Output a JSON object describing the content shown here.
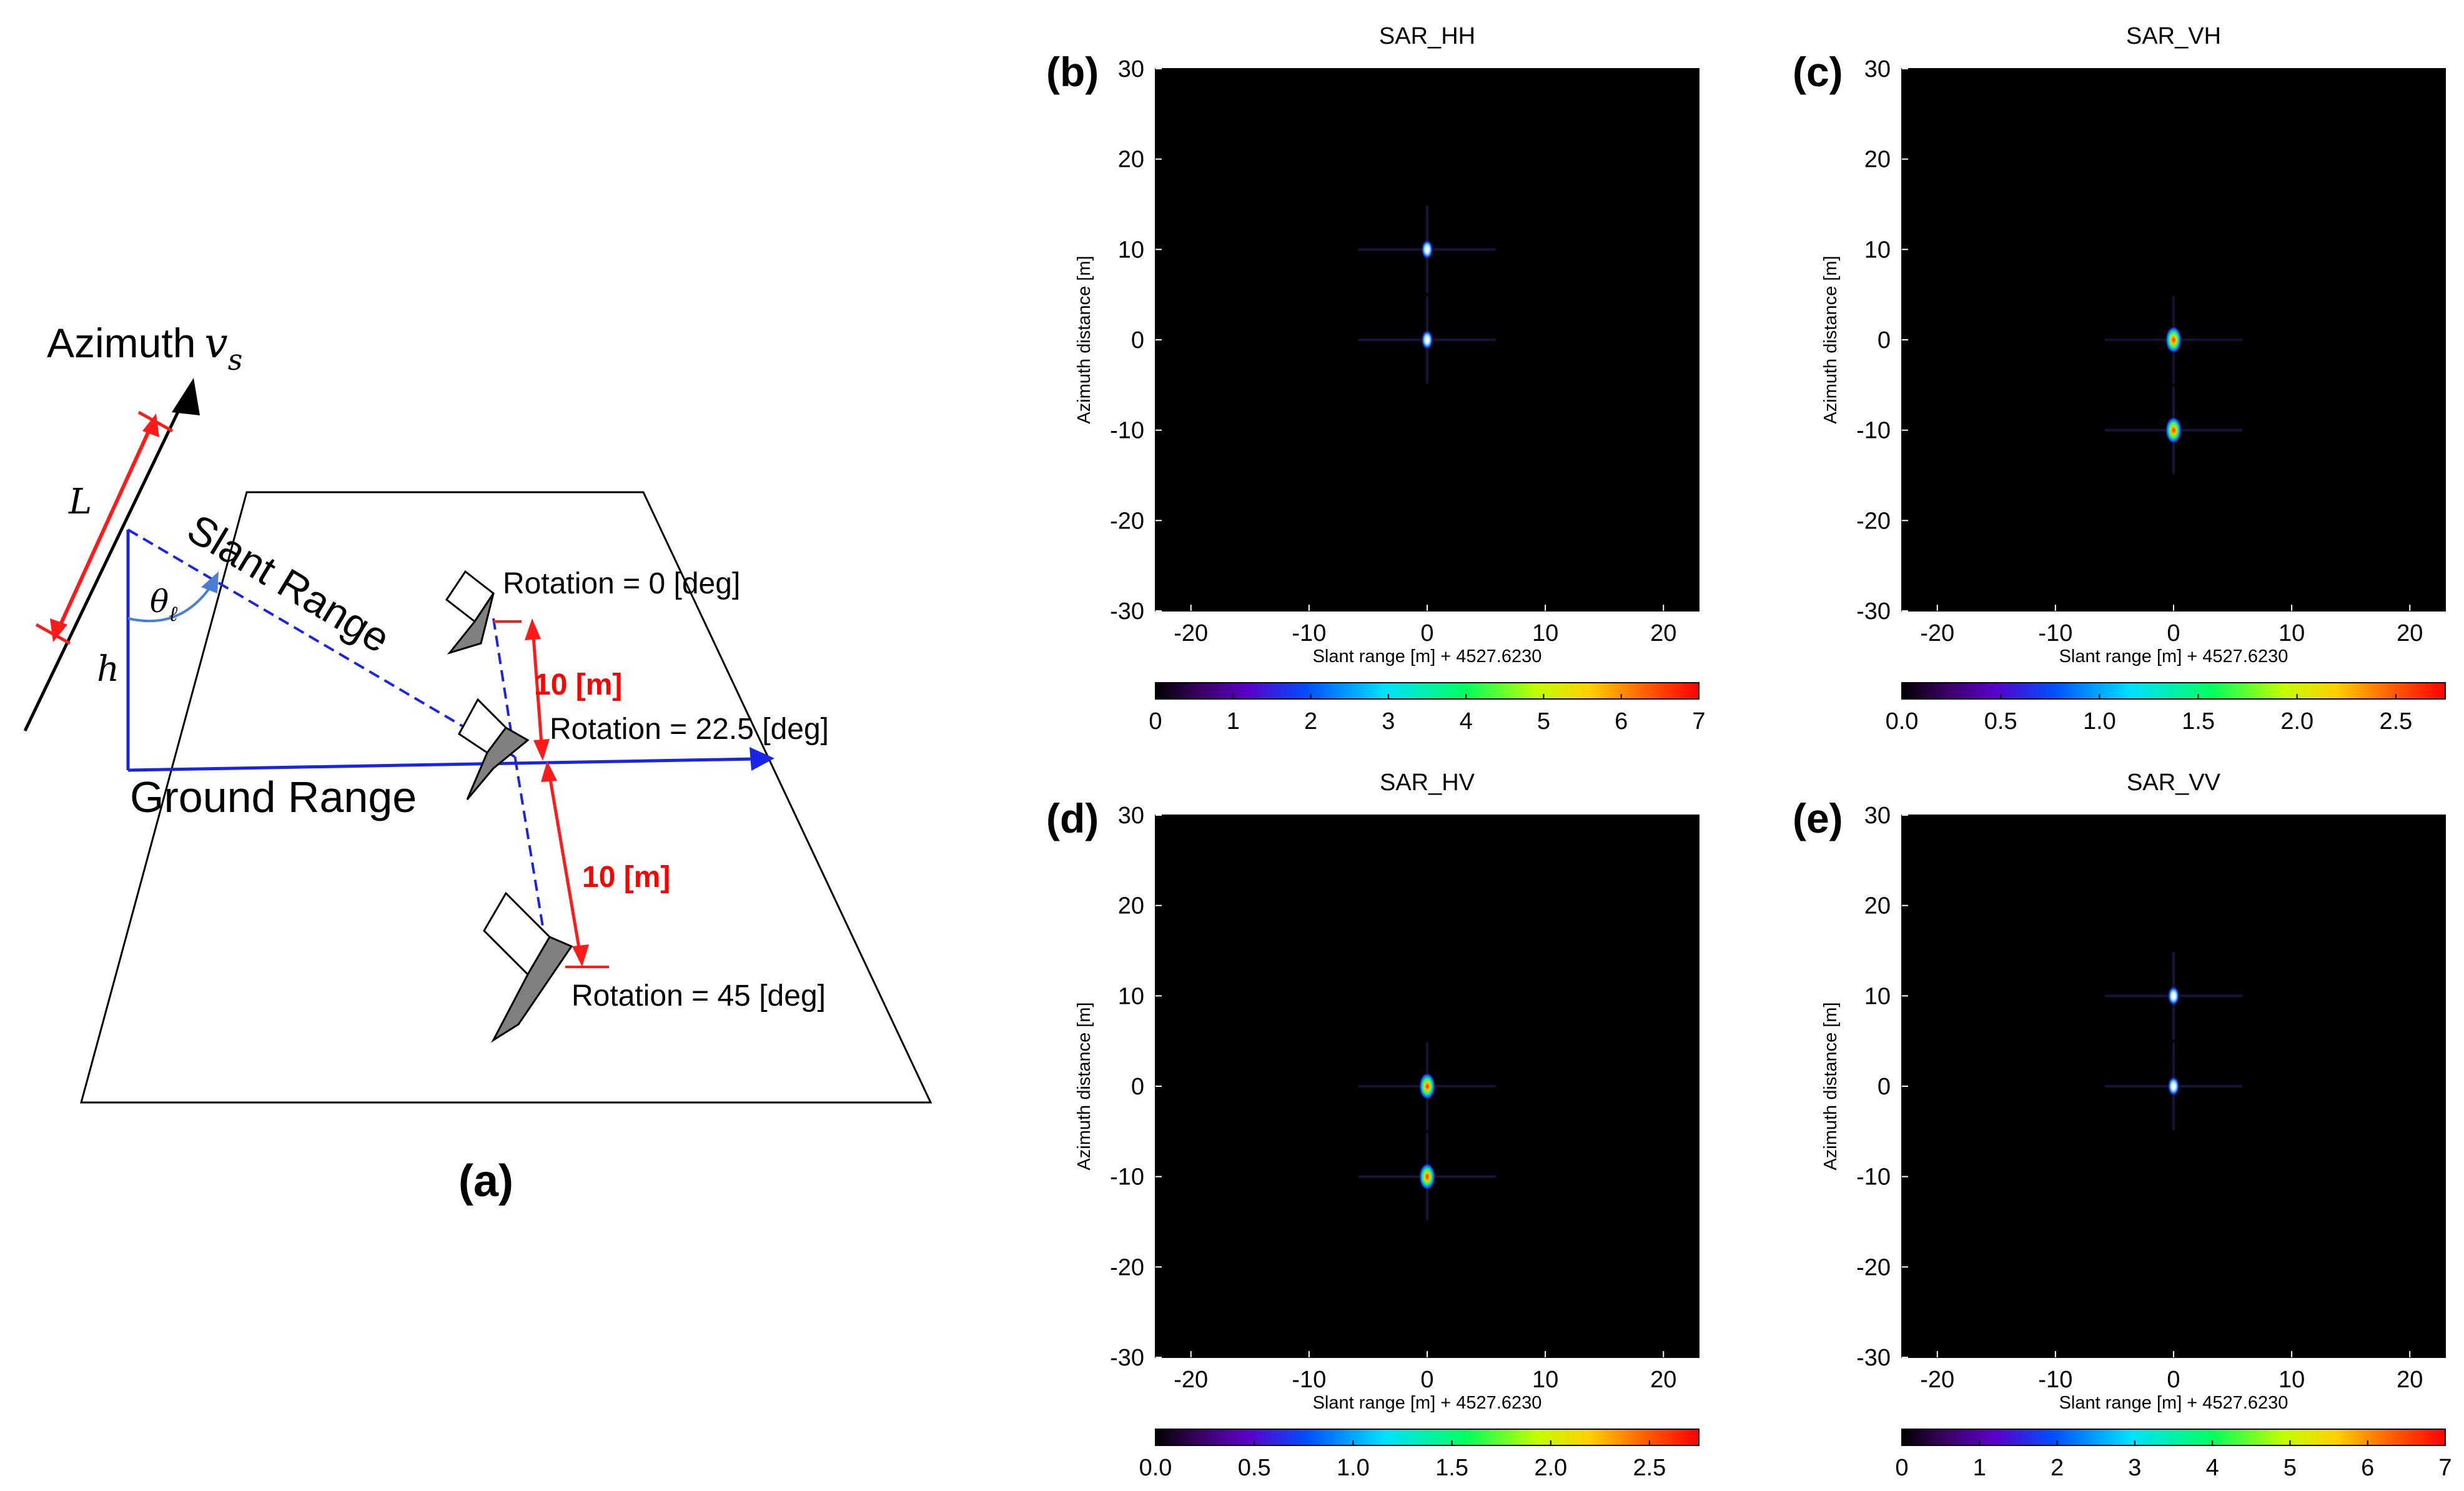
{
  "figure_type": "SAR simulation figure",
  "colors": {
    "arrow_red": "#ff1a1a",
    "geometry_blue": "#1a24e6",
    "label_red": "#ff0000",
    "reflector_grey": "#808080",
    "background_plot": "#000000"
  },
  "panel_a": {
    "label": "(a)",
    "azimuth_label": "Azimuth",
    "azimuth_symbol": "v",
    "azimuth_subscript": "s",
    "L_label": "L",
    "h_label": "h",
    "theta_symbol": "θ",
    "theta_subscript": "ℓ",
    "slant_range_label": "Slant Range",
    "ground_range_label": "Ground Range",
    "spacing_top": "10 [m]",
    "spacing_bottom": "10 [m]",
    "reflectors": [
      {
        "label": "Rotation = 0 [deg]",
        "rotation_deg": 0
      },
      {
        "label": "Rotation = 22.5 [deg]",
        "rotation_deg": 22.5
      },
      {
        "label": "Rotation = 45 [deg]",
        "rotation_deg": 45
      }
    ]
  },
  "chart_data": [
    {
      "type": "heatmap",
      "panel_label": "(b)",
      "title": "SAR_HH",
      "xlabel": "Slant range [m] + 4527.6230",
      "ylabel": "Azimuth distance [m]",
      "xlim": [
        -23,
        23
      ],
      "ylim": [
        -30,
        30
      ],
      "xticks": [
        -20,
        -10,
        0,
        10,
        20
      ],
      "yticks": [
        30,
        20,
        10,
        0,
        -10,
        -20,
        -30
      ],
      "points": [
        {
          "x": 0,
          "y": 10,
          "intensity": 7.0
        },
        {
          "x": 0,
          "y": 0,
          "intensity": 6.5
        }
      ],
      "colorbar": {
        "ticks": [
          "0",
          "1",
          "2",
          "3",
          "4",
          "5",
          "6",
          "7"
        ],
        "min": 0,
        "max": 7
      }
    },
    {
      "type": "heatmap",
      "panel_label": "(c)",
      "title": "SAR_VH",
      "xlabel": "Slant range [m] + 4527.6230",
      "ylabel": "Azimuth distance [m]",
      "xlim": [
        -23,
        23
      ],
      "ylim": [
        -30,
        30
      ],
      "xticks": [
        -20,
        -10,
        0,
        10,
        20
      ],
      "yticks": [
        30,
        20,
        10,
        0,
        -10,
        -20,
        -30
      ],
      "points": [
        {
          "x": 0,
          "y": 0,
          "intensity": 2.2
        },
        {
          "x": 0,
          "y": -10,
          "intensity": 2.7
        }
      ],
      "colorbar": {
        "ticks": [
          "0.0",
          "0.5",
          "1.0",
          "1.5",
          "2.0",
          "2.5"
        ],
        "min": 0,
        "max": 2.75
      }
    },
    {
      "type": "heatmap",
      "panel_label": "(d)",
      "title": "SAR_HV",
      "xlabel": "Slant range [m] + 4527.6230",
      "ylabel": "Azimuth distance [m]",
      "xlim": [
        -23,
        23
      ],
      "ylim": [
        -30,
        30
      ],
      "xticks": [
        -20,
        -10,
        0,
        10,
        20
      ],
      "yticks": [
        30,
        20,
        10,
        0,
        -10,
        -20,
        -30
      ],
      "points": [
        {
          "x": 0,
          "y": 0,
          "intensity": 2.2
        },
        {
          "x": 0,
          "y": -10,
          "intensity": 2.7
        }
      ],
      "colorbar": {
        "ticks": [
          "0.0",
          "0.5",
          "1.0",
          "1.5",
          "2.0",
          "2.5"
        ],
        "min": 0,
        "max": 2.75
      }
    },
    {
      "type": "heatmap",
      "panel_label": "(e)",
      "title": "SAR_VV",
      "xlabel": "Slant range [m] + 4527.6230",
      "ylabel": "Azimuth distance [m]",
      "xlim": [
        -23,
        23
      ],
      "ylim": [
        -30,
        30
      ],
      "xticks": [
        -20,
        -10,
        0,
        10,
        20
      ],
      "yticks": [
        30,
        20,
        10,
        0,
        -10,
        -20,
        -30
      ],
      "points": [
        {
          "x": 0,
          "y": 10,
          "intensity": 7.0
        },
        {
          "x": 0,
          "y": 0,
          "intensity": 6.5
        }
      ],
      "colorbar": {
        "ticks": [
          "0",
          "1",
          "2",
          "3",
          "4",
          "5",
          "6",
          "7"
        ],
        "min": 0,
        "max": 7
      }
    }
  ]
}
